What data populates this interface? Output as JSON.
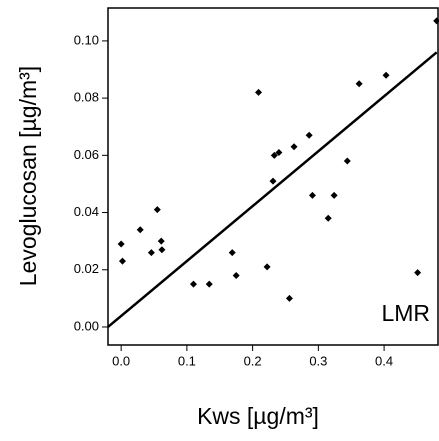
{
  "chart_data": {
    "type": "scatter",
    "x_label": "Kws [µg/m³]",
    "y_label": "Levoglucosan [µg/m³]",
    "annotation": "LMR",
    "color": "#000000",
    "x": [
      0.0,
      0.002,
      0.029,
      0.046,
      0.055,
      0.061,
      0.062,
      0.11,
      0.134,
      0.169,
      0.175,
      0.209,
      0.222,
      0.231,
      0.233,
      0.24,
      0.256,
      0.263,
      0.286,
      0.291,
      0.315,
      0.324,
      0.344,
      0.362,
      0.403,
      0.451,
      0.48
    ],
    "values": [
      0.029,
      0.023,
      0.034,
      0.026,
      0.041,
      0.03,
      0.027,
      0.015,
      0.015,
      0.026,
      0.018,
      0.082,
      0.021,
      0.051,
      0.06,
      0.061,
      0.01,
      0.063,
      0.067,
      0.046,
      0.038,
      0.046,
      0.058,
      0.085,
      0.088,
      0.019,
      0.107
    ],
    "trendline": {
      "x": [
        -0.02,
        0.48
      ],
      "y": [
        0.0,
        0.096
      ]
    },
    "xlim": [
      -0.02,
      0.482
    ],
    "ylim": [
      -0.0063,
      0.1115
    ],
    "xticks": [
      {
        "value": 0,
        "label": "0.0"
      },
      0.1,
      0.2,
      0.3,
      0.4
    ],
    "yticks": [
      {
        "value": 0,
        "label": "0.00"
      },
      0.02,
      0.04,
      0.06,
      0.08,
      {
        "value": 0.1,
        "label": "0.10"
      }
    ]
  }
}
